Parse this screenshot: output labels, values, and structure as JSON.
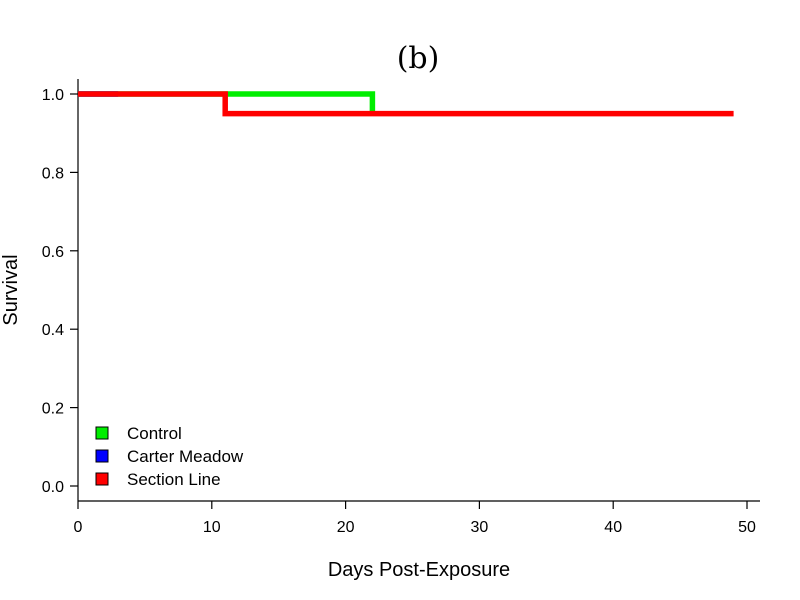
{
  "chart_data": {
    "type": "line",
    "step": true,
    "title": "(b)",
    "xlabel": "Days Post-Exposure",
    "ylabel": "Survival",
    "xlim": [
      0,
      50
    ],
    "ylim": [
      0.0,
      1.0
    ],
    "xticks": [
      0,
      10,
      20,
      30,
      40,
      50
    ],
    "yticks": [
      0.0,
      0.2,
      0.4,
      0.6,
      0.8,
      1.0
    ],
    "xtick_labels": [
      "0",
      "10",
      "20",
      "30",
      "40",
      "50"
    ],
    "ytick_labels": [
      "0.0",
      "0.2",
      "0.4",
      "0.6",
      "0.8",
      "1.0"
    ],
    "grid": false,
    "legend_position": "bottom-left",
    "series": [
      {
        "name": "Control",
        "color": "#00ee00",
        "x": [
          0,
          11,
          22,
          22
        ],
        "y": [
          1.0,
          1.0,
          1.0,
          0.95
        ]
      },
      {
        "name": "Carter Meadow",
        "color": "#0000ff",
        "x": [
          0,
          3
        ],
        "y": [
          1.0,
          1.0
        ]
      },
      {
        "name": "Section Line",
        "color": "#ff0000",
        "x": [
          0,
          11,
          11,
          49
        ],
        "y": [
          1.0,
          1.0,
          0.95,
          0.95
        ]
      }
    ]
  }
}
